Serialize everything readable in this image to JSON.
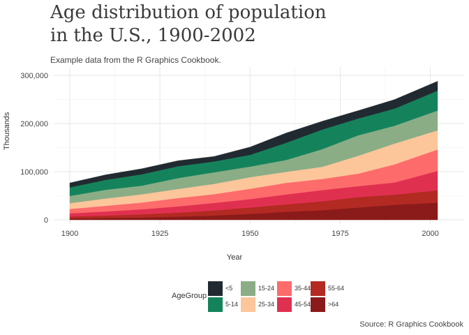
{
  "title_lines": [
    "Age distribution of population",
    "in the U.S., 1900-2002"
  ],
  "subtitle": "Example data from the R Graphics Cookbook.",
  "caption": "Source: R Graphics Cookbook",
  "chart_data": {
    "type": "area",
    "stacked": true,
    "title": "Age distribution of population in the U.S., 1900-2002",
    "xlabel": "Year",
    "ylabel": "Thousands",
    "xlim": [
      1900,
      2002
    ],
    "ylim": [
      0,
      300000
    ],
    "x_ticks": [
      1900,
      1925,
      1950,
      1975,
      2000
    ],
    "y_ticks": [
      0,
      100000,
      200000,
      300000
    ],
    "y_tick_labels": [
      "0",
      "100,000",
      "200,000",
      "300,000"
    ],
    "grid": true,
    "legend_title": "AgeGroup",
    "legend_position": "bottom",
    "x": [
      1900,
      1910,
      1920,
      1930,
      1940,
      1950,
      1960,
      1970,
      1980,
      1990,
      2002
    ],
    "series": [
      {
        "name": ">64",
        "color": "#8b1a1a",
        "values": [
          3100,
          3900,
          4900,
          6600,
          9000,
          12300,
          16600,
          20000,
          25500,
          31200,
          35600
        ]
      },
      {
        "name": "55-64",
        "color": "#b22a22",
        "values": [
          4000,
          5100,
          6500,
          8400,
          10600,
          13300,
          15600,
          18600,
          21700,
          21100,
          25700
        ]
      },
      {
        "name": "45-54",
        "color": "#e03050",
        "values": [
          6400,
          8400,
          10500,
          13000,
          15500,
          17400,
          20500,
          23200,
          22800,
          25200,
          40200
        ]
      },
      {
        "name": "35-44",
        "color": "#fd6b6b",
        "values": [
          9100,
          11700,
          14100,
          17200,
          18300,
          21500,
          24100,
          23100,
          25900,
          37600,
          44600
        ]
      },
      {
        "name": "25-34",
        "color": "#fcc59a",
        "values": [
          12000,
          15300,
          17100,
          18900,
          21300,
          24000,
          22900,
          25300,
          37100,
          43100,
          39900
        ]
      },
      {
        "name": "15-24",
        "color": "#8aad86",
        "values": [
          14900,
          18100,
          17900,
          22500,
          24000,
          22100,
          24600,
          36600,
          42500,
          37000,
          40900
        ]
      },
      {
        "name": "5-14",
        "color": "#14835c",
        "values": [
          17900,
          20500,
          23700,
          24700,
          22400,
          24300,
          35700,
          40800,
          34900,
          35500,
          41300
        ]
      },
      {
        "name": "<5",
        "color": "#212a30",
        "values": [
          9200,
          10600,
          11600,
          11400,
          10500,
          16200,
          20300,
          17200,
          16400,
          18800,
          19600
        ]
      }
    ]
  }
}
